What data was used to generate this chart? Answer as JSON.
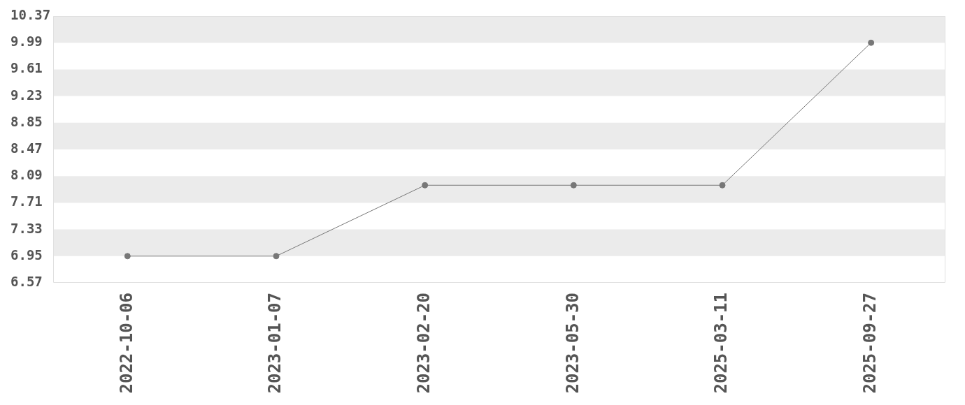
{
  "chart_data": {
    "type": "line",
    "categories": [
      "2022-10-06",
      "2023-01-07",
      "2023-02-20",
      "2023-05-30",
      "2025-03-11",
      "2025-09-27"
    ],
    "values": [
      6.95,
      6.95,
      7.96,
      7.96,
      7.96,
      9.99
    ],
    "color": "#777777",
    "marker": "circle",
    "line_style": "solid",
    "ylim": [
      6.57,
      10.37
    ],
    "yticks": [
      6.57,
      6.95,
      7.33,
      7.71,
      8.09,
      8.47,
      8.85,
      9.23,
      9.61,
      9.99,
      10.37
    ],
    "bands": [
      {
        "axis": "y",
        "from": 9.99,
        "to": 10.37,
        "color": "#ebebeb"
      },
      {
        "axis": "y",
        "from": 9.23,
        "to": 9.61,
        "color": "#ebebeb"
      },
      {
        "axis": "y",
        "from": 8.47,
        "to": 8.85,
        "color": "#ebebeb"
      },
      {
        "axis": "y",
        "from": 7.71,
        "to": 8.09,
        "color": "#ebebeb"
      },
      {
        "axis": "y",
        "from": 6.95,
        "to": 7.33,
        "color": "#ebebeb"
      }
    ]
  }
}
